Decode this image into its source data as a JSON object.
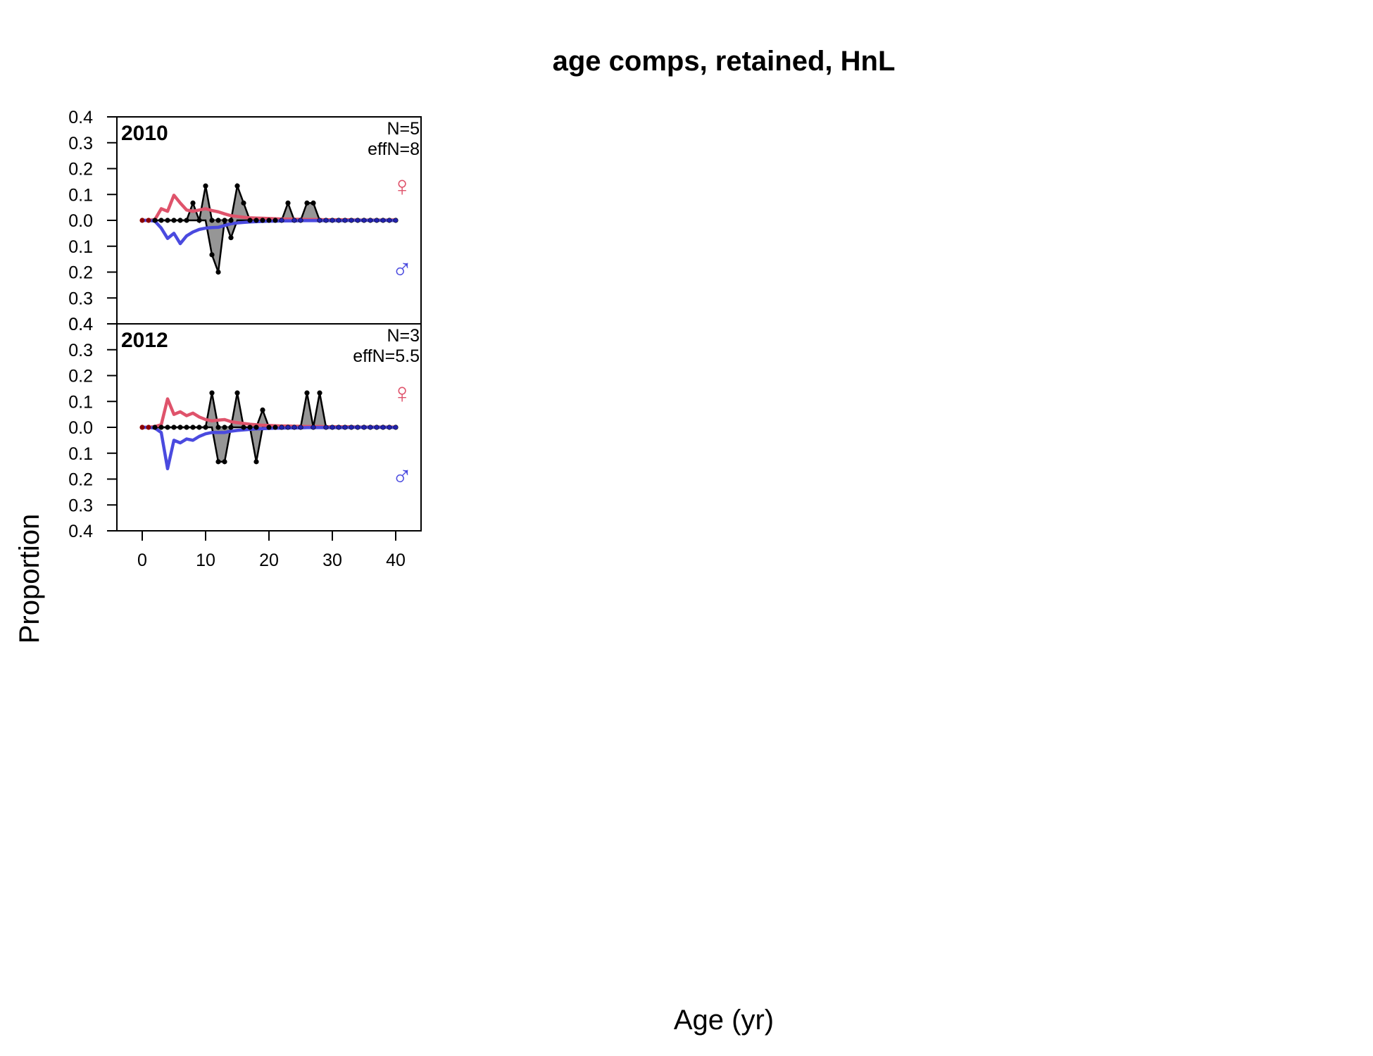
{
  "figure": {
    "title": "age comps, retained, HnL",
    "xlabel": "Age (yr)",
    "ylabel": "Proportion"
  },
  "colors": {
    "female": "#DF536B",
    "male": "#4A4ADF",
    "observed_fill": "#969696",
    "zero_line": "#BEBEBE"
  },
  "symbols": {
    "female": "♀",
    "male": "♂"
  },
  "chart_data": {
    "type": "area",
    "x": [
      0,
      1,
      2,
      3,
      4,
      5,
      6,
      7,
      8,
      9,
      10,
      11,
      12,
      13,
      14,
      15,
      16,
      17,
      18,
      19,
      20,
      21,
      22,
      23,
      24,
      25,
      26,
      27,
      28,
      29,
      30,
      31,
      32,
      33,
      34,
      35,
      36,
      37,
      38,
      39,
      40
    ],
    "xlim": [
      -4,
      44
    ],
    "ylim": [
      -0.4,
      0.4
    ],
    "x_ticks": [
      0,
      10,
      20,
      30,
      40
    ],
    "y_ticks": [
      0.4,
      0.3,
      0.2,
      0.1,
      0.0,
      0.1,
      0.2,
      0.3,
      0.4
    ],
    "y_tick_note": "female proportions plotted upward, male proportions downward",
    "panels": [
      {
        "year": "2010",
        "n_label": "N=5",
        "effn_label": "effN=8",
        "observed_female": [
          0,
          0,
          0,
          0,
          0,
          0,
          0,
          0,
          0.067,
          0,
          0.133,
          0,
          0,
          0,
          0,
          0.133,
          0.067,
          0,
          0,
          0,
          0,
          0,
          0,
          0.067,
          0,
          0,
          0.067,
          0.067,
          0,
          0,
          0,
          0,
          0,
          0,
          0,
          0,
          0,
          0,
          0,
          0,
          0
        ],
        "observed_male": [
          0,
          0,
          0,
          0,
          0,
          0,
          0,
          0,
          0,
          0,
          0,
          0.133,
          0.2,
          0,
          0.067,
          0,
          0,
          0,
          0,
          0,
          0,
          0,
          0,
          0,
          0,
          0,
          0,
          0,
          0,
          0,
          0,
          0,
          0,
          0,
          0,
          0,
          0,
          0,
          0,
          0,
          0
        ],
        "expected_female": [
          0,
          0,
          0.003,
          0.045,
          0.035,
          0.097,
          0.067,
          0.04,
          0.035,
          0.04,
          0.045,
          0.038,
          0.033,
          0.025,
          0.018,
          0.015,
          0.012,
          0.01,
          0.009,
          0.008,
          0.007,
          0.006,
          0.005,
          0.005,
          0.004,
          0.004,
          0.003,
          0.003,
          0.003,
          0.002,
          0.002,
          0.002,
          0.002,
          0.002,
          0.001,
          0.001,
          0.001,
          0.001,
          0.001,
          0.001,
          0.002
        ],
        "expected_male": [
          0,
          0,
          0.003,
          0.03,
          0.07,
          0.05,
          0.09,
          0.06,
          0.045,
          0.035,
          0.03,
          0.028,
          0.027,
          0.02,
          0.013,
          0.01,
          0.008,
          0.006,
          0.005,
          0.004,
          0.003,
          0.003,
          0.002,
          0.002,
          0.002,
          0.001,
          0.001,
          0.001,
          0.001,
          0.001,
          0.001,
          0.001,
          0.001,
          0,
          0,
          0,
          0,
          0,
          0,
          0,
          0.001
        ]
      },
      {
        "year": "2012",
        "n_label": "N=3",
        "effn_label": "effN=5.5",
        "observed_female": [
          0,
          0,
          0,
          0,
          0,
          0,
          0,
          0,
          0,
          0,
          0,
          0.133,
          0,
          0,
          0,
          0.133,
          0,
          0,
          0,
          0.067,
          0,
          0,
          0,
          0,
          0,
          0,
          0.133,
          0,
          0.133,
          0,
          0,
          0,
          0,
          0,
          0,
          0,
          0,
          0,
          0,
          0,
          0
        ],
        "observed_male": [
          0,
          0,
          0,
          0,
          0,
          0,
          0,
          0,
          0,
          0,
          0,
          0,
          0.133,
          0.133,
          0,
          0,
          0,
          0,
          0.133,
          0,
          0,
          0,
          0,
          0,
          0,
          0,
          0,
          0,
          0,
          0,
          0,
          0,
          0,
          0,
          0,
          0,
          0,
          0,
          0,
          0,
          0
        ],
        "expected_female": [
          0,
          0,
          0.003,
          0.01,
          0.11,
          0.05,
          0.06,
          0.045,
          0.055,
          0.04,
          0.03,
          0.025,
          0.028,
          0.03,
          0.022,
          0.018,
          0.015,
          0.012,
          0.01,
          0.008,
          0.007,
          0.006,
          0.005,
          0.005,
          0.004,
          0.004,
          0.003,
          0.003,
          0.003,
          0.002,
          0.002,
          0.002,
          0.002,
          0.002,
          0.001,
          0.001,
          0.001,
          0.001,
          0.001,
          0.001,
          0.001
        ],
        "expected_male": [
          0,
          0,
          0.003,
          0.02,
          0.16,
          0.05,
          0.06,
          0.045,
          0.05,
          0.035,
          0.025,
          0.02,
          0.02,
          0.02,
          0.015,
          0.012,
          0.01,
          0.008,
          0.006,
          0.005,
          0.004,
          0.003,
          0.003,
          0.002,
          0.002,
          0.002,
          0.001,
          0.001,
          0.001,
          0.001,
          0.001,
          0.001,
          0.001,
          0,
          0,
          0,
          0,
          0,
          0,
          0,
          0.001
        ]
      }
    ]
  }
}
